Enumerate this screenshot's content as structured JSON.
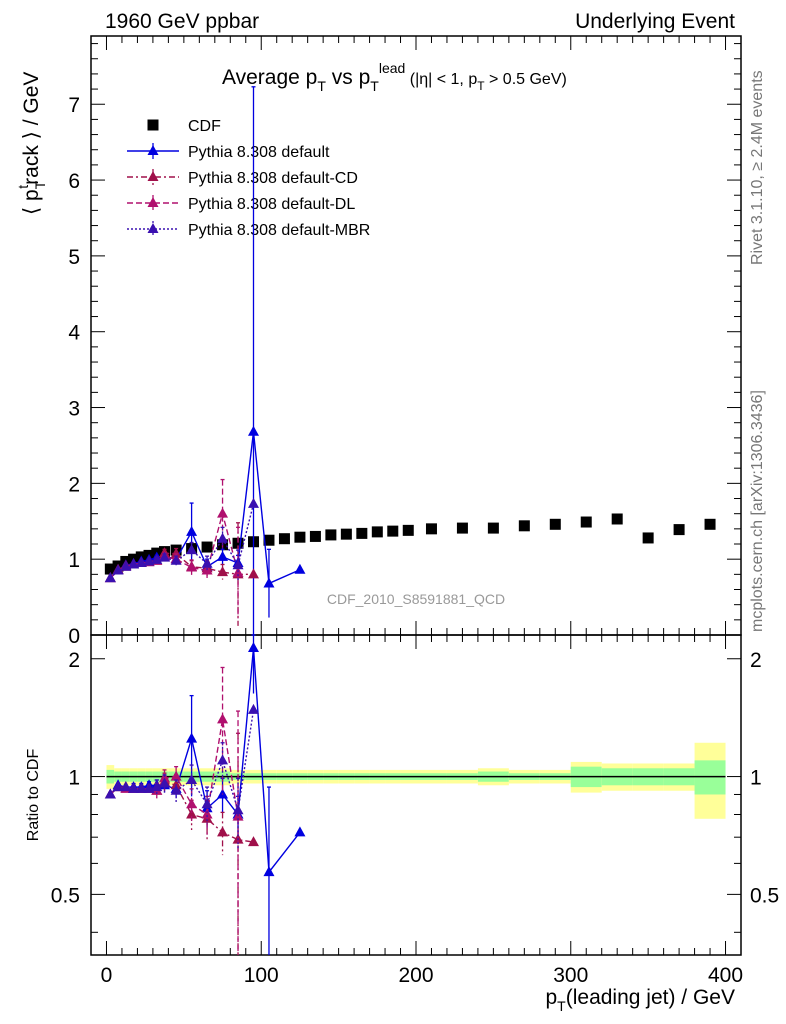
{
  "header": {
    "left": "1960 GeV ppbar",
    "right": "Underlying Event"
  },
  "title": {
    "main": "Average p",
    "sub1": "T",
    "vs": " vs p",
    "sub2": "T",
    "sup": "lead",
    "cuts": " (|η| < 1, p",
    "cuts_sub": "T",
    "cuts_end": " > 0.5 GeV)"
  },
  "side_labels": {
    "rivet": "Rivet 3.1.10, ≥ 2.4M events",
    "mcplots": "mcplots.cern.ch [arXiv:1306.3436]"
  },
  "watermark": "CDF_2010_S8591881_QCD",
  "colors": {
    "cdf": "#000000",
    "default": "#0000e0",
    "cd": "#a0104a",
    "dl": "#b0106e",
    "mbr": "#3a10b0",
    "band_outer": "#ffff99",
    "band_inner": "#99ff99"
  },
  "chart_data": [
    {
      "type": "scatter",
      "panel": "main",
      "ylabel": {
        "a": "⟨ p",
        "sub": "T",
        "sup": "t",
        "b": "rack ⟩ / GeV"
      },
      "xlim": [
        -10,
        410
      ],
      "ylim": [
        0,
        7.9
      ],
      "yticks": [
        0,
        1,
        2,
        3,
        4,
        5,
        6,
        7
      ],
      "yticklabels": [
        "0",
        "1",
        "2",
        "3",
        "4",
        "5",
        "6",
        "7"
      ],
      "legend_position": "top-left",
      "legend": [
        {
          "label": "CDF",
          "style": "square",
          "color": "#000000"
        },
        {
          "label": "Pythia 8.308 default",
          "style": "solid-triangle",
          "color": "#0000e0"
        },
        {
          "label": "Pythia 8.308 default-CD",
          "style": "dashdot-triangle",
          "color": "#a0104a"
        },
        {
          "label": "Pythia 8.308 default-DL",
          "style": "dashed-triangle",
          "color": "#b0106e"
        },
        {
          "label": "Pythia 8.308 default-MBR",
          "style": "dotted-triangle",
          "color": "#3a10b0"
        }
      ],
      "series": [
        {
          "name": "CDF",
          "x": [
            2.5,
            7.5,
            12.5,
            17.5,
            22.5,
            27.5,
            32.5,
            37.5,
            45,
            55,
            65,
            75,
            85,
            95,
            105,
            115,
            125,
            135,
            145,
            155,
            165,
            175,
            185,
            195,
            210,
            230,
            250,
            270,
            290,
            310,
            330,
            350,
            370,
            390
          ],
          "y": [
            0.87,
            0.91,
            0.97,
            1.0,
            1.03,
            1.05,
            1.08,
            1.1,
            1.12,
            1.14,
            1.16,
            1.19,
            1.21,
            1.23,
            1.25,
            1.27,
            1.29,
            1.3,
            1.32,
            1.33,
            1.34,
            1.36,
            1.37,
            1.38,
            1.4,
            1.41,
            1.41,
            1.44,
            1.46,
            1.49,
            1.53,
            1.28,
            1.39,
            1.46
          ]
        },
        {
          "name": "Pythia 8.308 default",
          "x": [
            2.5,
            7.5,
            12.5,
            17.5,
            22.5,
            27.5,
            32.5,
            37.5,
            45,
            55,
            65,
            75,
            85,
            95,
            105,
            125
          ],
          "y": [
            0.75,
            0.86,
            0.92,
            0.94,
            0.97,
            0.99,
            1.02,
            1.04,
            1.0,
            1.36,
            0.9,
            1.03,
            0.95,
            2.68,
            0.68,
            0.86
          ],
          "err": [
            0.01,
            0.01,
            0.01,
            0.02,
            0.02,
            0.02,
            0.03,
            0.04,
            0.05,
            0.38,
            0.1,
            0.1,
            0.1,
            4.55,
            0.45,
            0.0
          ]
        },
        {
          "name": "Pythia 8.308 default-CD",
          "x": [
            2.5,
            7.5,
            12.5,
            17.5,
            22.5,
            27.5,
            32.5,
            37.5,
            45,
            55,
            65,
            75,
            85,
            95
          ],
          "y": [
            0.75,
            0.86,
            0.91,
            0.93,
            0.95,
            0.97,
            0.98,
            1.08,
            1.07,
            0.9,
            0.88,
            0.83,
            0.8,
            0.8
          ],
          "err": [
            0.01,
            0.01,
            0.01,
            0.02,
            0.02,
            0.02,
            0.04,
            0.05,
            0.07,
            0.08,
            0.1,
            0.1,
            0.68,
            0.0
          ]
        },
        {
          "name": "Pythia 8.308 default-DL",
          "x": [
            2.5,
            7.5,
            12.5,
            17.5,
            22.5,
            27.5,
            32.5,
            37.5,
            45,
            55,
            65,
            75,
            85
          ],
          "y": [
            0.75,
            0.85,
            0.9,
            0.93,
            0.95,
            0.96,
            0.98,
            1.03,
            1.0,
            0.89,
            0.85,
            1.6,
            0.82
          ],
          "err": [
            0.01,
            0.01,
            0.01,
            0.02,
            0.02,
            0.02,
            0.04,
            0.05,
            0.07,
            0.1,
            0.1,
            0.45,
            0.6
          ]
        },
        {
          "name": "Pythia 8.308 default-MBR",
          "x": [
            2.5,
            7.5,
            12.5,
            17.5,
            22.5,
            27.5,
            32.5,
            37.5,
            45,
            55,
            65,
            75,
            85,
            95
          ],
          "y": [
            0.75,
            0.85,
            0.9,
            0.93,
            0.95,
            0.97,
            0.99,
            1.02,
            0.98,
            1.12,
            0.94,
            1.27,
            0.92,
            1.73
          ],
          "err": [
            0.01,
            0.01,
            0.01,
            0.02,
            0.02,
            0.02,
            0.04,
            0.05,
            0.06,
            0.1,
            0.1,
            0.15,
            0.2,
            0.0
          ]
        }
      ]
    },
    {
      "type": "scatter",
      "panel": "ratio",
      "ylabel": "Ratio to CDF",
      "xlabel": {
        "a": "p",
        "sub": "T",
        "b": "(leading jet) / GeV"
      },
      "xlim": [
        -10,
        410
      ],
      "ylim": [
        0.35,
        2.3
      ],
      "xticks": [
        0,
        100,
        200,
        300,
        400
      ],
      "xticklabels": [
        "0",
        "100",
        "200",
        "300",
        "400"
      ],
      "yticks": [
        0.5,
        1,
        2
      ],
      "yticklabels": [
        "0.5",
        "1",
        "2"
      ],
      "band": {
        "x_edges": [
          0,
          5,
          10,
          15,
          20,
          25,
          30,
          35,
          40,
          50,
          60,
          70,
          80,
          90,
          100,
          110,
          120,
          130,
          140,
          150,
          160,
          170,
          180,
          190,
          200,
          220,
          240,
          260,
          280,
          300,
          320,
          340,
          360,
          380,
          400
        ],
        "outer": [
          0.07,
          0.05,
          0.05,
          0.05,
          0.05,
          0.05,
          0.05,
          0.05,
          0.05,
          0.05,
          0.05,
          0.05,
          0.04,
          0.04,
          0.04,
          0.04,
          0.04,
          0.04,
          0.04,
          0.04,
          0.04,
          0.04,
          0.04,
          0.04,
          0.04,
          0.04,
          0.05,
          0.04,
          0.04,
          0.09,
          0.08,
          0.08,
          0.08,
          0.22
        ],
        "inner": [
          0.04,
          0.03,
          0.03,
          0.03,
          0.03,
          0.03,
          0.03,
          0.03,
          0.03,
          0.03,
          0.03,
          0.03,
          0.02,
          0.02,
          0.02,
          0.02,
          0.02,
          0.02,
          0.02,
          0.02,
          0.02,
          0.02,
          0.02,
          0.02,
          0.02,
          0.02,
          0.03,
          0.02,
          0.02,
          0.06,
          0.05,
          0.05,
          0.05,
          0.1
        ]
      },
      "series": [
        {
          "name": "Pythia 8.308 default",
          "x": [
            2.5,
            7.5,
            12.5,
            17.5,
            22.5,
            27.5,
            32.5,
            37.5,
            45,
            55,
            65,
            75,
            85,
            95,
            105,
            125
          ],
          "y": [
            0.9,
            0.95,
            0.94,
            0.94,
            0.94,
            0.95,
            0.95,
            0.95,
            0.93,
            1.25,
            0.83,
            0.9,
            0.8,
            2.13,
            0.57,
            0.72
          ],
          "err": [
            0.01,
            0.01,
            0.01,
            0.02,
            0.02,
            0.02,
            0.03,
            0.04,
            0.05,
            0.36,
            0.09,
            0.09,
            0.09,
            0.5,
            0.37,
            0.0
          ]
        },
        {
          "name": "Pythia 8.308 default-CD",
          "x": [
            2.5,
            7.5,
            12.5,
            17.5,
            22.5,
            27.5,
            32.5,
            37.5,
            45,
            55,
            65,
            75,
            85,
            95
          ],
          "y": [
            0.9,
            0.94,
            0.94,
            0.93,
            0.93,
            0.93,
            0.92,
            0.97,
            0.95,
            0.8,
            0.78,
            0.72,
            0.69,
            0.68
          ],
          "err": [
            0.01,
            0.01,
            0.01,
            0.02,
            0.02,
            0.02,
            0.04,
            0.05,
            0.06,
            0.07,
            0.09,
            0.09,
            0.6,
            0.0
          ]
        },
        {
          "name": "Pythia 8.308 default-DL",
          "x": [
            2.5,
            7.5,
            12.5,
            17.5,
            22.5,
            27.5,
            32.5,
            37.5,
            45,
            55,
            65,
            75,
            85
          ],
          "y": [
            0.9,
            0.94,
            0.93,
            0.93,
            0.93,
            0.93,
            0.92,
            0.99,
            1.0,
            0.85,
            0.8,
            1.4,
            0.79
          ],
          "err": [
            0.01,
            0.01,
            0.01,
            0.02,
            0.02,
            0.02,
            0.04,
            0.05,
            0.06,
            0.08,
            0.09,
            0.5,
            0.68
          ]
        },
        {
          "name": "Pythia 8.308 default-MBR",
          "x": [
            2.5,
            7.5,
            12.5,
            17.5,
            22.5,
            27.5,
            32.5,
            37.5,
            45,
            55,
            65,
            75,
            85,
            95
          ],
          "y": [
            0.9,
            0.94,
            0.94,
            0.93,
            0.93,
            0.93,
            0.94,
            0.96,
            0.92,
            0.98,
            0.85,
            1.1,
            0.82,
            1.48
          ],
          "err": [
            0.01,
            0.01,
            0.01,
            0.02,
            0.02,
            0.02,
            0.04,
            0.05,
            0.06,
            0.09,
            0.09,
            0.12,
            0.17,
            0.0
          ]
        }
      ]
    }
  ]
}
